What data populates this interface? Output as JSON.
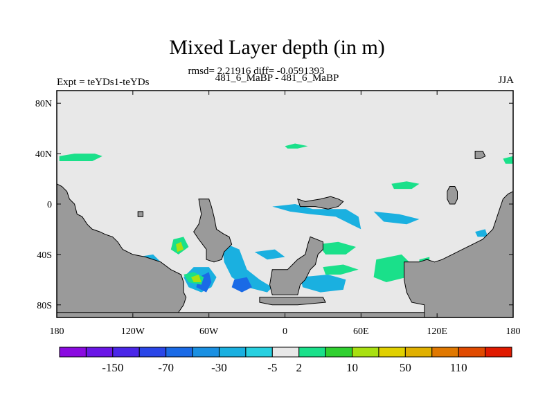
{
  "chart_data": {
    "type": "heatmap",
    "title": "Mixed Layer depth (in m)",
    "stats_line": "rmsd= 2.21916 diff= -0.0591393",
    "subtitle": "481_6_MaBP - 481_6_MaBP",
    "left_label": "Expt = teYDs1-teYDs",
    "right_label": "JJA",
    "x_ticks": [
      {
        "value": -180,
        "label": "180"
      },
      {
        "value": -120,
        "label": "120W"
      },
      {
        "value": -60,
        "label": "60W"
      },
      {
        "value": 0,
        "label": "0"
      },
      {
        "value": 60,
        "label": "60E"
      },
      {
        "value": 120,
        "label": "120E"
      },
      {
        "value": 180,
        "label": "180"
      }
    ],
    "y_ticks": [
      {
        "value": 80,
        "label": "80N"
      },
      {
        "value": 40,
        "label": "40N"
      },
      {
        "value": 0,
        "label": "0"
      },
      {
        "value": -40,
        "label": "40S"
      },
      {
        "value": -80,
        "label": "80S"
      }
    ],
    "xlim": [
      -180,
      180
    ],
    "ylim": [
      -90,
      90
    ],
    "colorbar": {
      "colors": [
        "#8a0ae0",
        "#6a16e6",
        "#4a26e8",
        "#2a46e8",
        "#1a6ae6",
        "#1a90e2",
        "#1ab0e0",
        "#28d0e0",
        "#e8e8e8",
        "#1ae08a",
        "#30d030",
        "#a8e010",
        "#e0d000",
        "#e0b000",
        "#e07800",
        "#e04a00",
        "#e01a00"
      ],
      "labels": [
        {
          "after_box": 2,
          "text": "-150"
        },
        {
          "after_box": 4,
          "text": "-70"
        },
        {
          "after_box": 6,
          "text": "-30"
        },
        {
          "after_box": 8,
          "text": "-5"
        },
        {
          "after_box": 9,
          "text": "2"
        },
        {
          "after_box": 11,
          "text": "10"
        },
        {
          "after_box": 13,
          "text": "50"
        },
        {
          "after_box": 15,
          "text": "110"
        }
      ]
    },
    "land_polygons": [
      [
        [
          -180,
          16
        ],
        [
          -176,
          14
        ],
        [
          -172,
          10
        ],
        [
          -170,
          4
        ],
        [
          -166,
          0
        ],
        [
          -164,
          -8
        ],
        [
          -160,
          -10
        ],
        [
          -156,
          -16
        ],
        [
          -152,
          -20
        ],
        [
          -146,
          -22
        ],
        [
          -142,
          -24
        ],
        [
          -136,
          -26
        ],
        [
          -132,
          -30
        ],
        [
          -128,
          -36
        ],
        [
          -120,
          -40
        ],
        [
          -110,
          -42
        ],
        [
          -98,
          -46
        ],
        [
          -90,
          -52
        ],
        [
          -82,
          -56
        ],
        [
          -80,
          -62
        ],
        [
          -80,
          -70
        ],
        [
          -78,
          -74
        ],
        [
          -80,
          -80
        ],
        [
          -84,
          -86
        ],
        [
          -90,
          -90
        ],
        [
          -180,
          -90
        ]
      ],
      [
        [
          -68,
          4
        ],
        [
          -60,
          4
        ],
        [
          -58,
          -2
        ],
        [
          -56,
          -10
        ],
        [
          -54,
          -20
        ],
        [
          -48,
          -24
        ],
        [
          -44,
          -26
        ],
        [
          -42,
          -32
        ],
        [
          -48,
          -38
        ],
        [
          -50,
          -44
        ],
        [
          -56,
          -46
        ],
        [
          -62,
          -44
        ],
        [
          -62,
          -36
        ],
        [
          -68,
          -28
        ],
        [
          -72,
          -22
        ],
        [
          -68,
          -16
        ],
        [
          -66,
          -8
        ]
      ],
      [
        [
          -180,
          -86
        ],
        [
          180,
          -86
        ],
        [
          180,
          -90
        ],
        [
          -180,
          -90
        ]
      ],
      [
        [
          -20,
          -74
        ],
        [
          30,
          -74
        ],
        [
          32,
          -78
        ],
        [
          10,
          -80
        ],
        [
          -10,
          -80
        ],
        [
          -20,
          -78
        ]
      ],
      [
        [
          -10,
          -52
        ],
        [
          2,
          -52
        ],
        [
          6,
          -48
        ],
        [
          10,
          -44
        ],
        [
          16,
          -40
        ],
        [
          18,
          -32
        ],
        [
          20,
          -26
        ],
        [
          30,
          -30
        ],
        [
          30,
          -36
        ],
        [
          26,
          -40
        ],
        [
          24,
          -48
        ],
        [
          20,
          -52
        ],
        [
          16,
          -60
        ],
        [
          12,
          -64
        ],
        [
          10,
          -72
        ],
        [
          -10,
          -72
        ],
        [
          -12,
          -64
        ]
      ],
      [
        [
          10,
          4
        ],
        [
          16,
          2
        ],
        [
          28,
          4
        ],
        [
          36,
          6
        ],
        [
          42,
          4
        ],
        [
          46,
          2
        ],
        [
          42,
          -2
        ],
        [
          34,
          -4
        ],
        [
          24,
          -2
        ],
        [
          12,
          -2
        ]
      ],
      [
        [
          94,
          -46
        ],
        [
          106,
          -46
        ],
        [
          112,
          -44
        ],
        [
          118,
          -46
        ],
        [
          124,
          -44
        ],
        [
          132,
          -40
        ],
        [
          140,
          -36
        ],
        [
          148,
          -32
        ],
        [
          156,
          -28
        ],
        [
          160,
          -24
        ],
        [
          164,
          -20
        ],
        [
          166,
          -14
        ],
        [
          168,
          -8
        ],
        [
          170,
          -2
        ],
        [
          172,
          4
        ],
        [
          176,
          8
        ],
        [
          180,
          10
        ],
        [
          180,
          -90
        ],
        [
          110,
          -90
        ],
        [
          110,
          -80
        ],
        [
          100,
          -78
        ],
        [
          96,
          -70
        ],
        [
          94,
          -60
        ]
      ],
      [
        [
          130,
          14
        ],
        [
          134,
          14
        ],
        [
          136,
          10
        ],
        [
          136,
          4
        ],
        [
          134,
          0
        ],
        [
          130,
          0
        ],
        [
          128,
          4
        ],
        [
          128,
          10
        ]
      ],
      [
        [
          150,
          42
        ],
        [
          156,
          42
        ],
        [
          158,
          38
        ],
        [
          154,
          36
        ],
        [
          150,
          36
        ]
      ],
      [
        [
          -116,
          -6
        ],
        [
          -112,
          -6
        ],
        [
          -112,
          -10
        ],
        [
          -116,
          -10
        ]
      ]
    ],
    "field_blobs": [
      {
        "level": "green",
        "pts": [
          [
            -178,
            38
          ],
          [
            -166,
            40
          ],
          [
            -150,
            40
          ],
          [
            -144,
            38
          ],
          [
            -152,
            34
          ],
          [
            -170,
            34
          ],
          [
            -178,
            34
          ]
        ]
      },
      {
        "level": "green",
        "pts": [
          [
            0,
            46
          ],
          [
            8,
            48
          ],
          [
            18,
            46
          ],
          [
            10,
            44
          ],
          [
            2,
            44
          ]
        ]
      },
      {
        "level": "green",
        "pts": [
          [
            84,
            16
          ],
          [
            96,
            18
          ],
          [
            106,
            16
          ],
          [
            100,
            12
          ],
          [
            86,
            12
          ]
        ]
      },
      {
        "level": "green",
        "pts": [
          [
            172,
            36
          ],
          [
            180,
            38
          ],
          [
            180,
            32
          ],
          [
            174,
            32
          ]
        ]
      },
      {
        "level": "cyan",
        "pts": [
          [
            -10,
            -2
          ],
          [
            8,
            0
          ],
          [
            22,
            -4
          ],
          [
            48,
            -4
          ],
          [
            58,
            -10
          ],
          [
            60,
            -20
          ],
          [
            52,
            -16
          ],
          [
            40,
            -10
          ],
          [
            20,
            -8
          ],
          [
            4,
            -6
          ]
        ]
      },
      {
        "level": "cyan",
        "pts": [
          [
            -50,
            -30
          ],
          [
            -36,
            -36
          ],
          [
            -30,
            -52
          ],
          [
            -20,
            -60
          ],
          [
            -10,
            -66
          ],
          [
            -14,
            -70
          ],
          [
            -30,
            -66
          ],
          [
            -42,
            -58
          ],
          [
            -48,
            -46
          ]
        ]
      },
      {
        "level": "cyan",
        "pts": [
          [
            -72,
            -50
          ],
          [
            -60,
            -50
          ],
          [
            -54,
            -58
          ],
          [
            -58,
            -66
          ],
          [
            -66,
            -70
          ],
          [
            -76,
            -66
          ],
          [
            -80,
            -58
          ]
        ]
      },
      {
        "level": "cyan",
        "pts": [
          [
            12,
            -58
          ],
          [
            34,
            -56
          ],
          [
            48,
            -60
          ],
          [
            46,
            -68
          ],
          [
            28,
            -70
          ],
          [
            14,
            -66
          ]
        ]
      },
      {
        "level": "blue",
        "pts": [
          [
            -68,
            -58
          ],
          [
            -60,
            -54
          ],
          [
            -58,
            -62
          ],
          [
            -62,
            -70
          ],
          [
            -70,
            -66
          ]
        ]
      },
      {
        "level": "blue",
        "pts": [
          [
            -40,
            -60
          ],
          [
            -30,
            -58
          ],
          [
            -26,
            -66
          ],
          [
            -34,
            -70
          ],
          [
            -42,
            -66
          ]
        ]
      },
      {
        "level": "green",
        "pts": [
          [
            -80,
            -56
          ],
          [
            -72,
            -54
          ],
          [
            -64,
            -58
          ],
          [
            -66,
            -64
          ],
          [
            -76,
            -62
          ]
        ]
      },
      {
        "level": "yellow",
        "pts": [
          [
            -74,
            -58
          ],
          [
            -68,
            -56
          ],
          [
            -66,
            -62
          ],
          [
            -72,
            -62
          ]
        ]
      },
      {
        "level": "green",
        "pts": [
          [
            -88,
            -28
          ],
          [
            -80,
            -26
          ],
          [
            -76,
            -34
          ],
          [
            -84,
            -40
          ],
          [
            -90,
            -36
          ]
        ]
      },
      {
        "level": "yellow",
        "pts": [
          [
            -86,
            -32
          ],
          [
            -82,
            -30
          ],
          [
            -80,
            -36
          ],
          [
            -85,
            -38
          ]
        ]
      },
      {
        "level": "green",
        "pts": [
          [
            26,
            -32
          ],
          [
            42,
            -30
          ],
          [
            56,
            -34
          ],
          [
            48,
            -40
          ],
          [
            32,
            -40
          ]
        ]
      },
      {
        "level": "green",
        "pts": [
          [
            72,
            -44
          ],
          [
            92,
            -40
          ],
          [
            100,
            -48
          ],
          [
            96,
            -58
          ],
          [
            80,
            -62
          ],
          [
            70,
            -58
          ]
        ]
      },
      {
        "level": "green",
        "pts": [
          [
            30,
            -50
          ],
          [
            46,
            -48
          ],
          [
            58,
            -52
          ],
          [
            44,
            -56
          ],
          [
            32,
            -56
          ]
        ]
      },
      {
        "level": "cyan",
        "pts": [
          [
            70,
            -6
          ],
          [
            90,
            -8
          ],
          [
            106,
            -12
          ],
          [
            96,
            -16
          ],
          [
            78,
            -14
          ]
        ]
      },
      {
        "level": "cyan",
        "pts": [
          [
            136,
            -38
          ],
          [
            150,
            -36
          ],
          [
            156,
            -42
          ],
          [
            142,
            -46
          ]
        ]
      },
      {
        "level": "cyan",
        "pts": [
          [
            -116,
            -42
          ],
          [
            -104,
            -40
          ],
          [
            -98,
            -46
          ],
          [
            -110,
            -48
          ]
        ]
      },
      {
        "level": "cyan",
        "pts": [
          [
            150,
            -22
          ],
          [
            158,
            -20
          ],
          [
            160,
            -26
          ],
          [
            152,
            -26
          ]
        ]
      },
      {
        "level": "green",
        "pts": [
          [
            106,
            -44
          ],
          [
            114,
            -42
          ],
          [
            114,
            -48
          ],
          [
            106,
            -48
          ]
        ]
      },
      {
        "level": "cyan",
        "pts": [
          [
            -24,
            -38
          ],
          [
            -8,
            -36
          ],
          [
            0,
            -42
          ],
          [
            -14,
            -44
          ]
        ]
      }
    ]
  }
}
